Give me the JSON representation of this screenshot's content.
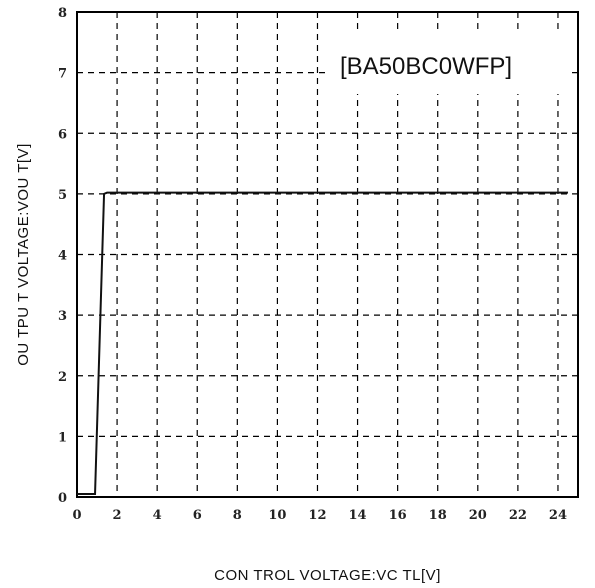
{
  "chart_data": {
    "type": "line",
    "title": "",
    "annotation": "[BA50BC0WFP]",
    "xlabel": "CON TROL VOLTAGE:VC TL[V]",
    "ylabel": "OU TPU T VOLTAGE:VOU T[V]",
    "xlim": [
      0,
      25
    ],
    "ylim": [
      0,
      8
    ],
    "x_ticks": [
      0,
      2,
      4,
      6,
      8,
      10,
      12,
      14,
      16,
      18,
      20,
      22,
      24
    ],
    "y_ticks": [
      0,
      1,
      2,
      3,
      4,
      5,
      6,
      7,
      8
    ],
    "grid": true,
    "legend": "none",
    "series": [
      {
        "x": [
          0,
          0.9,
          1.35,
          1.5,
          24.5
        ],
        "y": [
          0.05,
          0.05,
          5.0,
          5.02,
          5.02
        ]
      }
    ]
  }
}
